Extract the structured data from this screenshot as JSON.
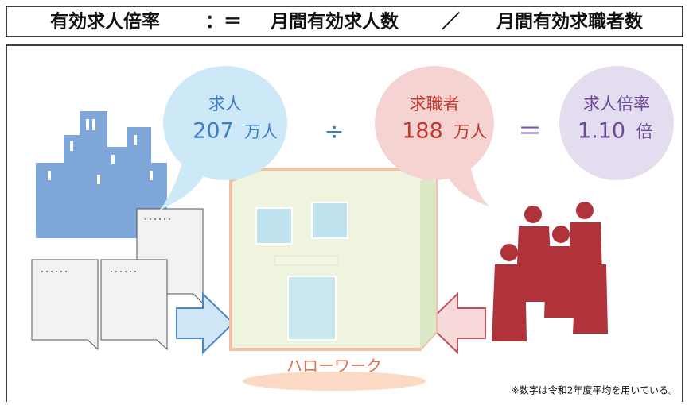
{
  "header": {
    "parts": [
      "有効求人倍率",
      "：＝",
      "月間有効求人数",
      "／",
      "月間有効求職者数"
    ]
  },
  "bubbles": [
    {
      "label": "求人",
      "number": "207",
      "unit": "万人"
    },
    {
      "label": "求職者",
      "number": "188",
      "unit": "万人"
    },
    {
      "label": "求人倍率",
      "number": "1.10",
      "unit": "倍"
    }
  ],
  "operators": [
    "÷",
    "＝"
  ],
  "building_label": "ハローワーク",
  "note": "※数字は令和2年度平均を用いている。"
}
